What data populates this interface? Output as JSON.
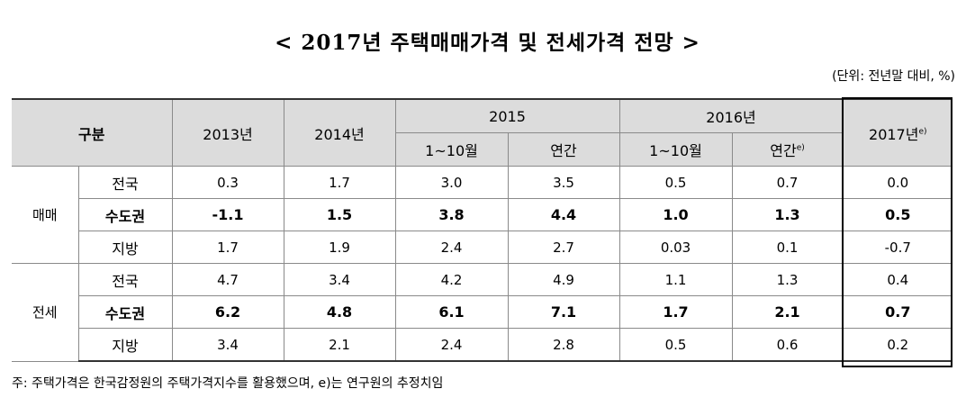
{
  "title": "< 2017년 주택매매가격 및 전세가격 전망 >",
  "unit_note": "(단위: 전년말 대비, %)",
  "header": {
    "gubun": "구분",
    "y2013": "2013년",
    "y2014": "2014년",
    "y2015": "2015",
    "y2016": "2016년",
    "y2017": "2017년",
    "y2017_sup": "e)",
    "sub_1_10": "1~10월",
    "sub_annual": "연간",
    "sub_1_10_b": "1~10월",
    "sub_annual_b": "연간",
    "sub_annual_b_sup": "e)"
  },
  "groups": [
    {
      "name": "매매",
      "rows": [
        {
          "region": "전국",
          "values": [
            "0.3",
            "1.7",
            "3.0",
            "3.5",
            "0.5",
            "0.7",
            "0.0"
          ]
        },
        {
          "region": "수도권",
          "values": [
            "-1.1",
            "1.5",
            "3.8",
            "4.4",
            "1.0",
            "1.3",
            "0.5"
          ]
        },
        {
          "region": "지방",
          "values": [
            "1.7",
            "1.9",
            "2.4",
            "2.7",
            "0.03",
            "0.1",
            "-0.7"
          ]
        }
      ]
    },
    {
      "name": "전세",
      "rows": [
        {
          "region": "전국",
          "values": [
            "4.7",
            "3.4",
            "4.2",
            "4.9",
            "1.1",
            "1.3",
            "0.4"
          ]
        },
        {
          "region": "수도권",
          "values": [
            "6.2",
            "4.8",
            "6.1",
            "7.1",
            "1.7",
            "2.1",
            "0.7"
          ]
        },
        {
          "region": "지방",
          "values": [
            "3.4",
            "2.1",
            "2.4",
            "2.8",
            "0.5",
            "0.6",
            "0.2"
          ]
        }
      ]
    }
  ],
  "footnote": "주: 주택가격은 한국감정원의 주택가격지수를 활용했으며, e)는 연구원의 추정치임"
}
